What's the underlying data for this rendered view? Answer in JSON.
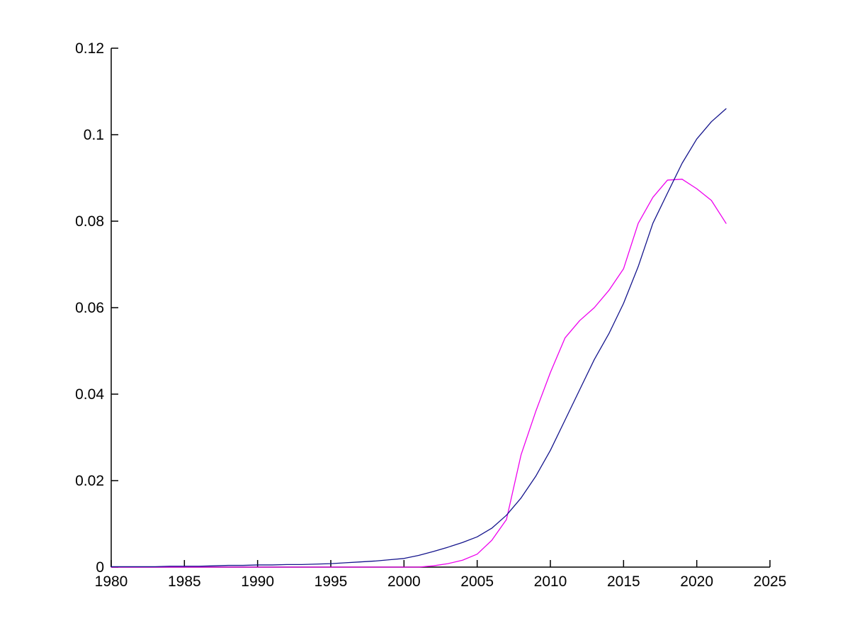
{
  "figure": {
    "background": "#ffffff"
  },
  "chart_data": {
    "type": "line",
    "title": "",
    "xlabel": "",
    "ylabel": "",
    "xlim": [
      1980,
      2025
    ],
    "ylim": [
      0,
      0.12
    ],
    "xticks": [
      1980,
      1985,
      1990,
      1995,
      2000,
      2005,
      2010,
      2015,
      2020,
      2025
    ],
    "xtick_labels": [
      "1980",
      "1985",
      "1990",
      "1995",
      "2000",
      "2005",
      "2010",
      "2015",
      "2020",
      "2025"
    ],
    "yticks": [
      0,
      0.02,
      0.04,
      0.06,
      0.08,
      0.1,
      0.12
    ],
    "ytick_labels": [
      "0",
      "0.02",
      "0.04",
      "0.06",
      "0.08",
      "0.1",
      "0.12"
    ],
    "grid": false,
    "legend": "none",
    "axis_color": "#000000",
    "background_color": "#ffffff",
    "x": [
      1980,
      1981,
      1982,
      1983,
      1984,
      1985,
      1986,
      1987,
      1988,
      1989,
      1990,
      1991,
      1992,
      1993,
      1994,
      1995,
      1996,
      1997,
      1998,
      1999,
      2000,
      2001,
      2002,
      2003,
      2004,
      2005,
      2006,
      2007,
      2008,
      2009,
      2010,
      2011,
      2012,
      2013,
      2014,
      2015,
      2016,
      2017,
      2018,
      2019,
      2020,
      2021,
      2022
    ],
    "series": [
      {
        "name": "magenta-line",
        "color": "#EE00EE",
        "values": [
          0,
          0,
          0,
          0,
          0,
          0,
          0,
          0,
          0,
          0,
          0,
          0,
          0,
          0,
          0,
          0,
          0,
          0,
          0,
          0,
          0,
          0,
          0.0003,
          0.0008,
          0.0016,
          0.003,
          0.0062,
          0.011,
          0.026,
          0.036,
          0.045,
          0.053,
          0.057,
          0.06,
          0.064,
          0.069,
          0.0795,
          0.0855,
          0.0895,
          0.0897,
          0.0875,
          0.0848,
          0.0795
        ]
      },
      {
        "name": "dark-blue-line",
        "color": "#14148C",
        "values": [
          0.0001,
          0.0001,
          0.0001,
          0.0001,
          0.0002,
          0.0002,
          0.0002,
          0.0003,
          0.0004,
          0.0004,
          0.0005,
          0.0005,
          0.0006,
          0.0006,
          0.0007,
          0.0008,
          0.001,
          0.0012,
          0.0014,
          0.0017,
          0.002,
          0.0027,
          0.0036,
          0.0046,
          0.0057,
          0.007,
          0.009,
          0.012,
          0.016,
          0.021,
          0.027,
          0.034,
          0.041,
          0.048,
          0.054,
          0.061,
          0.0695,
          0.0795,
          0.0865,
          0.0934,
          0.099,
          0.103,
          0.106
        ]
      }
    ]
  }
}
